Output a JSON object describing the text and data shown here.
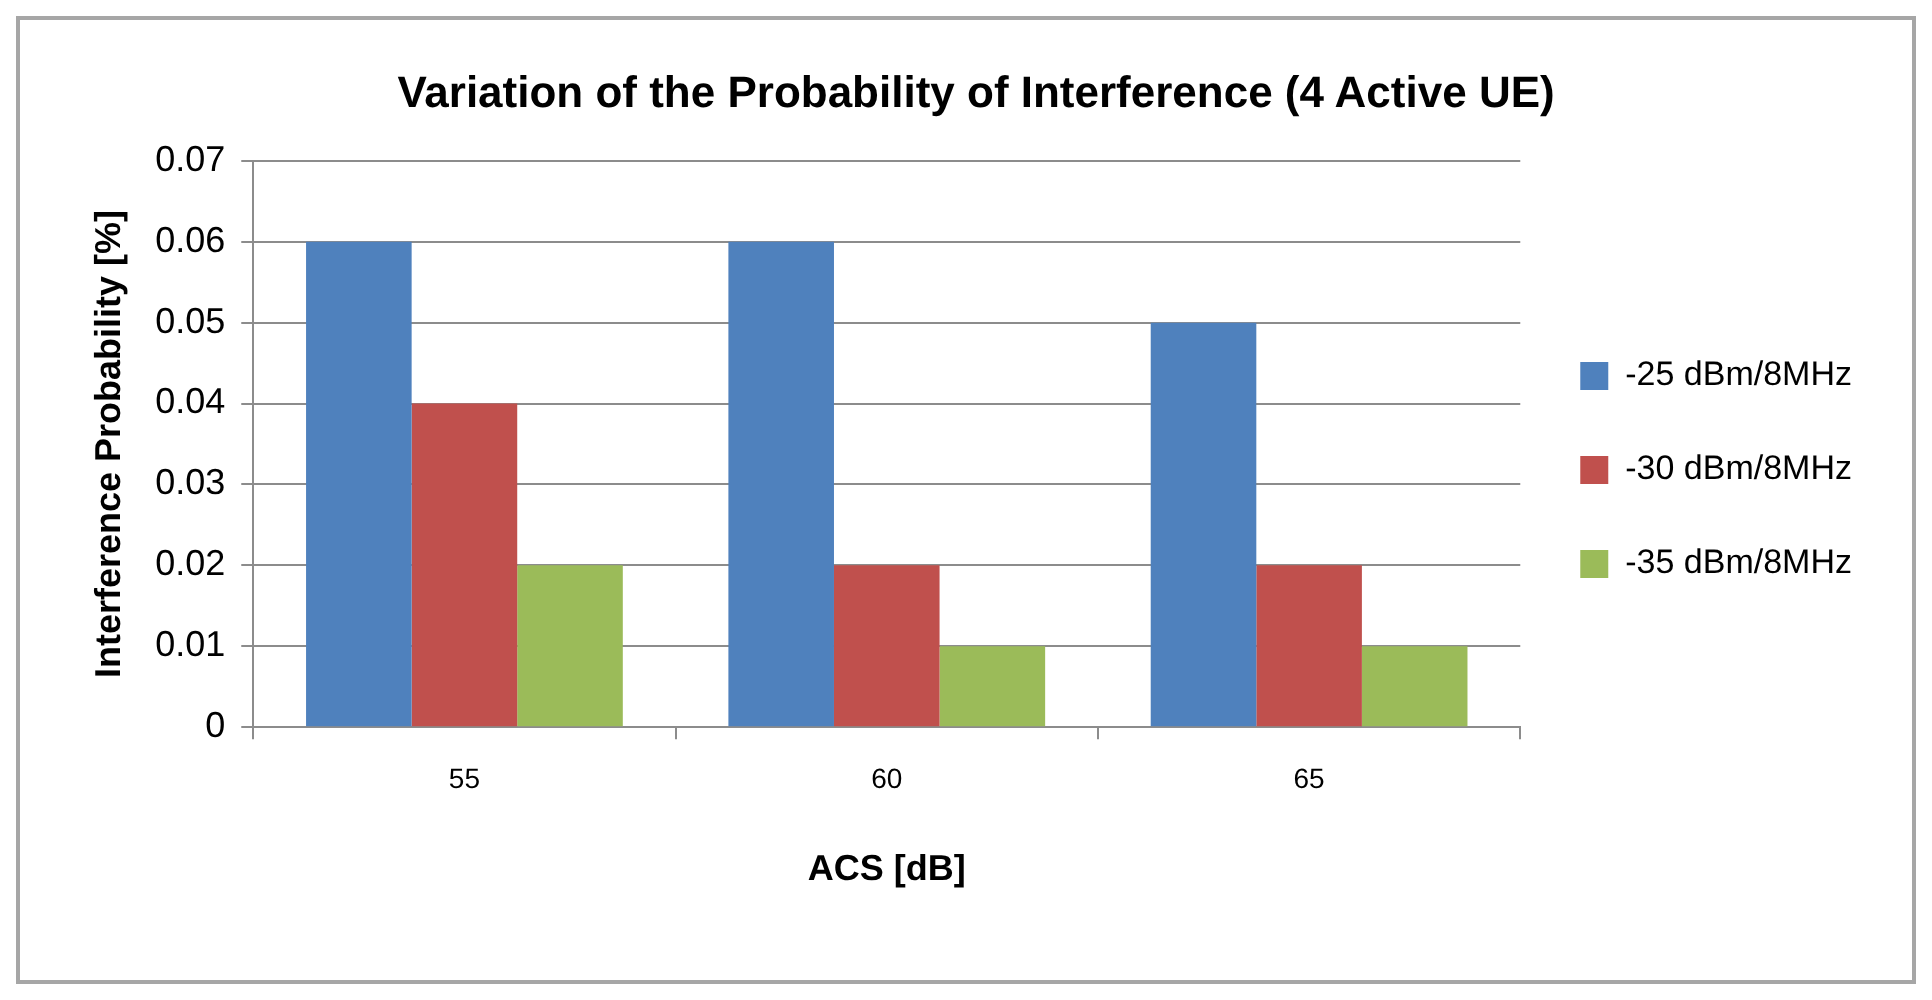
{
  "chart_data": {
    "type": "bar",
    "title": "Variation of the Probability of Interference (4 Active UE)",
    "xlabel": "ACS [dB]",
    "ylabel": "Interference Probability [%]",
    "categories": [
      "55",
      "60",
      "65"
    ],
    "series": [
      {
        "name": "-25 dBm/8MHz",
        "color": "#4f81bd",
        "values": [
          0.06,
          0.06,
          0.05
        ]
      },
      {
        "name": "-30 dBm/8MHz",
        "color": "#c0504d",
        "values": [
          0.04,
          0.02,
          0.02
        ]
      },
      {
        "name": "-35 dBm/8MHz",
        "color": "#9bbb59",
        "values": [
          0.02,
          0.01,
          0.01
        ]
      }
    ],
    "ylim": [
      0,
      0.07
    ],
    "yticks": [
      0,
      0.01,
      0.02,
      0.03,
      0.04,
      0.05,
      0.06,
      0.07
    ],
    "grid": "y",
    "legend": "right"
  }
}
